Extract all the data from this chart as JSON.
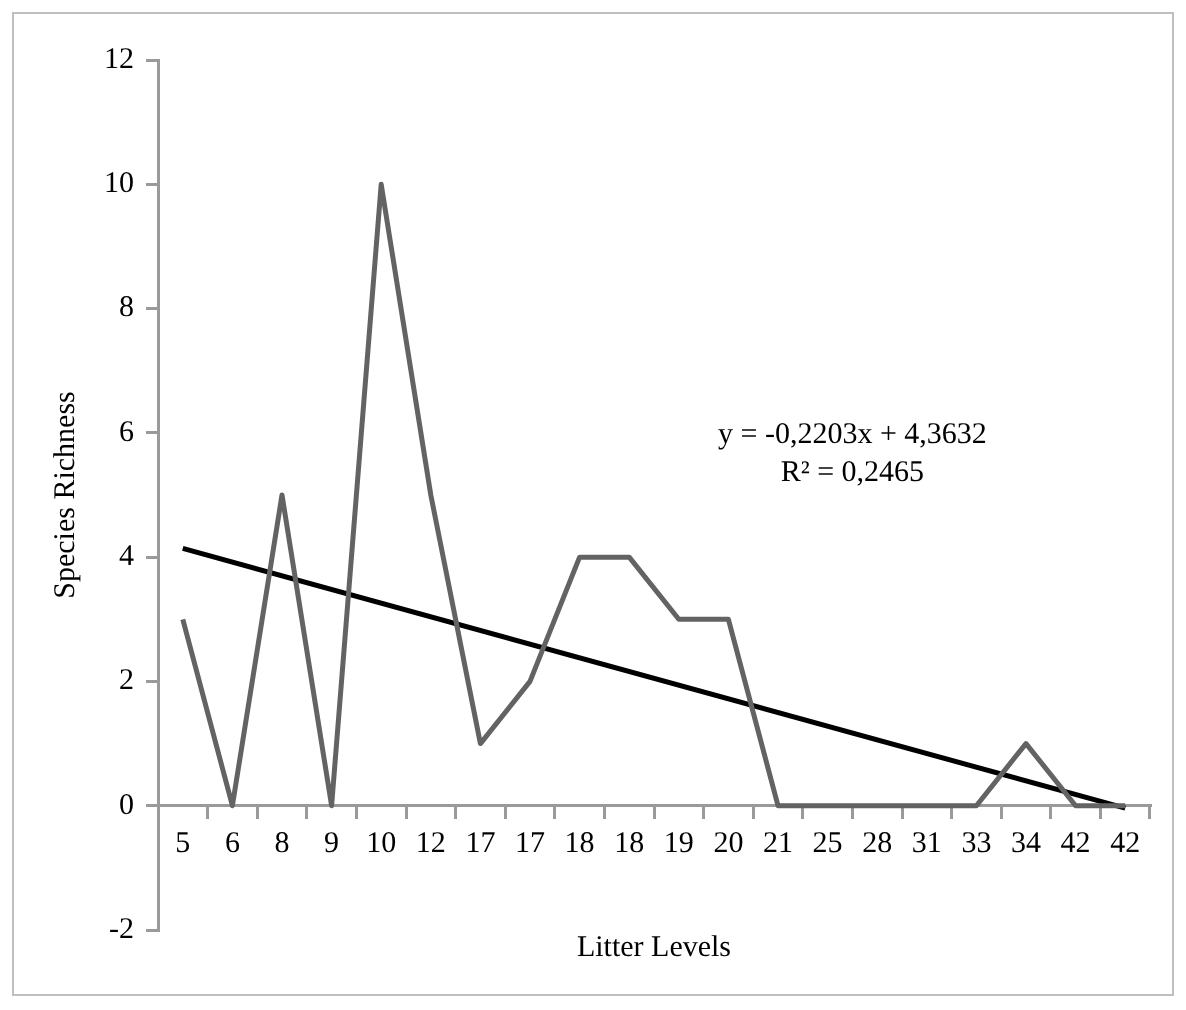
{
  "chart_data": {
    "type": "line",
    "xlabel": "Litter Levels",
    "ylabel": "Species Richness",
    "categories": [
      "5",
      "6",
      "8",
      "9",
      "10",
      "12",
      "17",
      "17",
      "18",
      "18",
      "19",
      "20",
      "21",
      "25",
      "28",
      "31",
      "33",
      "34",
      "42",
      "42"
    ],
    "series": [
      {
        "color": "#636363",
        "values": [
          3,
          0,
          5,
          0,
          10,
          5,
          1,
          2,
          4,
          4,
          3,
          3,
          0,
          0,
          0,
          0,
          0,
          1,
          0,
          0
        ]
      },
      {
        "type": "line",
        "color": "#000000",
        "values": [
          4.14,
          null,
          null,
          null,
          null,
          null,
          null,
          null,
          null,
          null,
          null,
          null,
          null,
          null,
          null,
          null,
          null,
          null,
          null,
          -0.04
        ]
      }
    ],
    "ylim": [
      -2,
      12
    ],
    "yticks": [
      -2,
      0,
      2,
      4,
      6,
      8,
      10,
      12
    ],
    "grid": false,
    "legend": false,
    "marker": "none",
    "line_style": "solid",
    "annotations": [
      "y = -0,2203x + 4,3632",
      "R² = 0,2465"
    ]
  }
}
